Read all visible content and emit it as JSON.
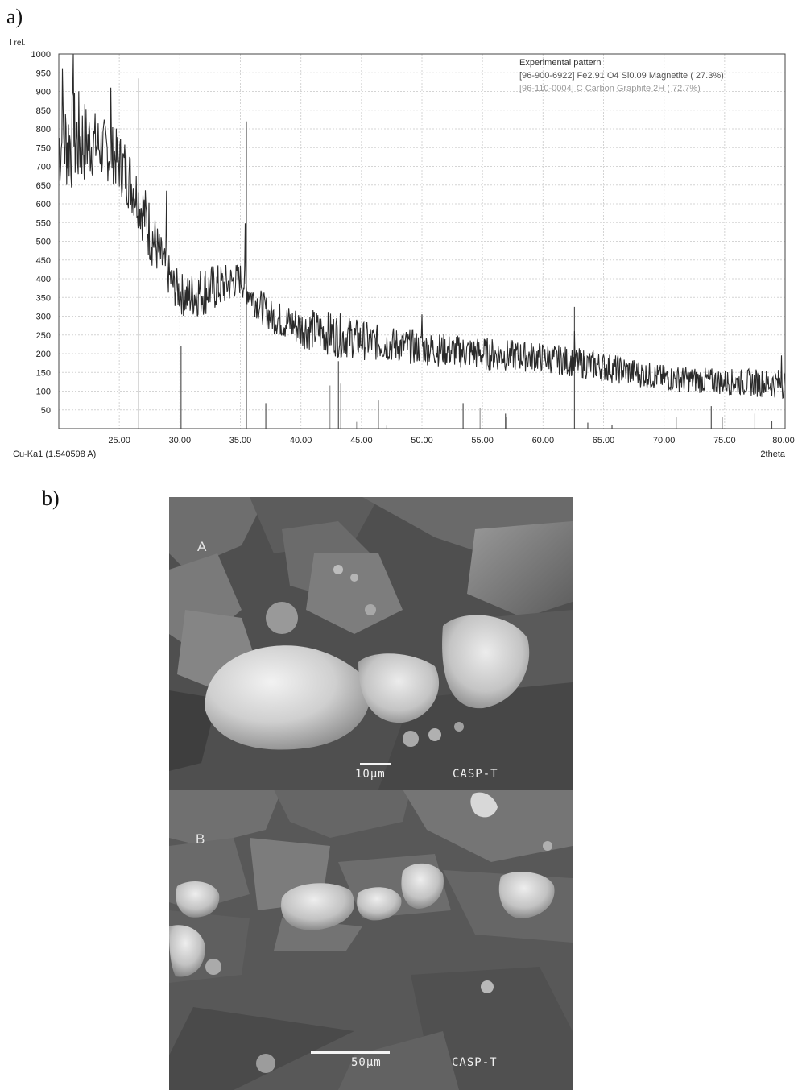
{
  "figure": {
    "panel_a_label": "a)",
    "panel_b_label": "b)"
  },
  "chart_data": {
    "type": "line",
    "y_axis_title": "I rel.",
    "x_axis_title": "2theta",
    "radiation_label": "Cu-Ka1 (1.540598 A)",
    "xlim": [
      20,
      80
    ],
    "ylim": [
      0,
      1000
    ],
    "x_ticks": [
      "25.00",
      "30.00",
      "35.00",
      "40.00",
      "45.00",
      "50.00",
      "55.00",
      "60.00",
      "65.00",
      "70.00",
      "75.00",
      "80.00"
    ],
    "y_ticks": [
      "50",
      "100",
      "150",
      "200",
      "250",
      "300",
      "350",
      "400",
      "450",
      "500",
      "550",
      "600",
      "650",
      "700",
      "750",
      "800",
      "850",
      "900",
      "950",
      "1000"
    ],
    "grid": true,
    "legend_position": "top-right",
    "legend": [
      {
        "label": "Experimental pattern",
        "color": "#333333"
      },
      {
        "label": "[96-900-6922] Fe2.91 O4 Si0.09  Magnetite ( 27.3%)",
        "color": "#555555"
      },
      {
        "label": "[96-110-0004] C Carbon Graphite 2H ( 72.7%)",
        "color": "#9a9a9a"
      }
    ],
    "series": [
      {
        "name": "Experimental pattern",
        "color": "#2a2a2a",
        "envelope": [
          {
            "x": 20.0,
            "y": 760,
            "noise": 130
          },
          {
            "x": 21.5,
            "y": 770,
            "noise": 140
          },
          {
            "x": 23.0,
            "y": 760,
            "noise": 90
          },
          {
            "x": 24.5,
            "y": 730,
            "noise": 80
          },
          {
            "x": 25.5,
            "y": 690,
            "noise": 90
          },
          {
            "x": 26.5,
            "y": 620,
            "noise": 80
          },
          {
            "x": 27.5,
            "y": 530,
            "noise": 90
          },
          {
            "x": 28.5,
            "y": 450,
            "noise": 60
          },
          {
            "x": 29.5,
            "y": 380,
            "noise": 55
          },
          {
            "x": 30.5,
            "y": 350,
            "noise": 60
          },
          {
            "x": 32.0,
            "y": 370,
            "noise": 70
          },
          {
            "x": 33.5,
            "y": 380,
            "noise": 60
          },
          {
            "x": 35.0,
            "y": 400,
            "noise": 45
          },
          {
            "x": 36.0,
            "y": 350,
            "noise": 45
          },
          {
            "x": 37.5,
            "y": 300,
            "noise": 45
          },
          {
            "x": 40.0,
            "y": 270,
            "noise": 55
          },
          {
            "x": 43.0,
            "y": 250,
            "noise": 60
          },
          {
            "x": 46.0,
            "y": 230,
            "noise": 50
          },
          {
            "x": 50.0,
            "y": 215,
            "noise": 45
          },
          {
            "x": 55.0,
            "y": 200,
            "noise": 45
          },
          {
            "x": 60.0,
            "y": 190,
            "noise": 40
          },
          {
            "x": 65.0,
            "y": 165,
            "noise": 40
          },
          {
            "x": 70.0,
            "y": 135,
            "noise": 35
          },
          {
            "x": 75.0,
            "y": 125,
            "noise": 35
          },
          {
            "x": 80.0,
            "y": 120,
            "noise": 40
          }
        ],
        "peaks": [
          {
            "x": 20.3,
            "y": 960
          },
          {
            "x": 21.2,
            "y": 1000
          },
          {
            "x": 24.3,
            "y": 910
          },
          {
            "x": 28.9,
            "y": 635
          },
          {
            "x": 35.4,
            "y": 548
          },
          {
            "x": 50.0,
            "y": 305
          },
          {
            "x": 62.6,
            "y": 260
          },
          {
            "x": 79.7,
            "y": 195
          }
        ]
      }
    ],
    "reference_lines": [
      {
        "phase": "Graphite 2H",
        "color": "#9a9a9a",
        "x": [
          26.6,
          42.4,
          44.6,
          54.8,
          77.5
        ]
      },
      {
        "phase": "Magnetite",
        "color": "#555555",
        "x": [
          30.1,
          35.5,
          37.1,
          43.1,
          43.3,
          46.4,
          47.1,
          53.4,
          56.9,
          57.0,
          62.6,
          63.7,
          65.7,
          71.0,
          73.9,
          74.8,
          78.9
        ]
      }
    ],
    "reference_intensities": {
      "26.6": 935,
      "42.4": 115,
      "44.6": 18,
      "54.8": 55,
      "77.5": 40,
      "30.1": 220,
      "35.5": 820,
      "37.1": 68,
      "43.1": 180,
      "43.3": 120,
      "46.4": 75,
      "47.1": 8,
      "53.4": 68,
      "56.9": 40,
      "57.0": 50,
      "62.6": 325,
      "63.7": 16,
      "65.7": 10,
      "71.0": 25,
      "73.9": 60,
      "74.8": 30,
      "78.9": 20
    }
  },
  "sem": {
    "panel_a": {
      "letter": "A",
      "scale_label": "10µm",
      "code": "CASP-T"
    },
    "panel_b": {
      "letter": "B",
      "scale_label": "50µm",
      "code": "CASP-T"
    }
  }
}
